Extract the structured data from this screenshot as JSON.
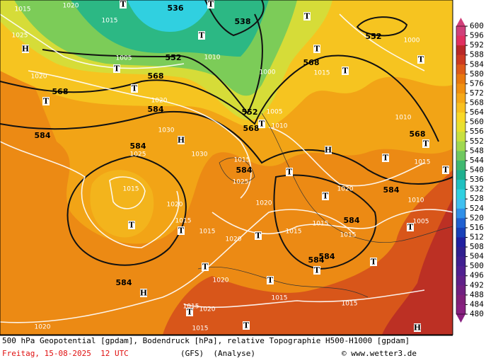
{
  "map": {
    "colorbar": {
      "levels": [
        600,
        596,
        592,
        588,
        584,
        580,
        576,
        572,
        568,
        564,
        560,
        556,
        552,
        548,
        544,
        540,
        536,
        532,
        528,
        524,
        520,
        516,
        512,
        508,
        504,
        500,
        496,
        492,
        488,
        484,
        480
      ],
      "colors": [
        "#d0407a",
        "#e03060",
        "#b82828",
        "#cc3a22",
        "#dd5a1a",
        "#e8780e",
        "#f09010",
        "#f5a818",
        "#f8c020",
        "#f8d828",
        "#e8e030",
        "#c8e040",
        "#a0d850",
        "#70c860",
        "#40b870",
        "#20b090",
        "#20c0c0",
        "#30d0e0",
        "#40c0f0",
        "#3090e8",
        "#2060d0",
        "#1840b8",
        "#2020a0",
        "#302090",
        "#402090",
        "#502090",
        "#602088",
        "#702080",
        "#802078",
        "#882080"
      ]
    },
    "geopotential_labels": [
      "584",
      "584",
      "584",
      "584",
      "584",
      "584",
      "584",
      "584",
      "584",
      "568",
      "568",
      "568",
      "568",
      "568",
      "552",
      "552",
      "552",
      "536",
      "538"
    ],
    "isobar_labels": [
      "1020",
      "1020",
      "1020",
      "1020",
      "1020",
      "1020",
      "1020",
      "1020",
      "1020",
      "1020",
      "1015",
      "1015",
      "1015",
      "1015",
      "1015",
      "1015",
      "1015",
      "1015",
      "1015",
      "1015",
      "1015",
      "1015",
      "1015",
      "1015",
      "1015",
      "1025",
      "1025",
      "1025",
      "1010",
      "1010",
      "1010",
      "1010",
      "1005",
      "1005",
      "1005",
      "1030",
      "1030",
      "1000",
      "1000"
    ],
    "pressure_centers": [
      "H",
      "H",
      "H",
      "H",
      "H",
      "T",
      "T",
      "T",
      "T",
      "T",
      "T",
      "T",
      "T",
      "T",
      "T",
      "T",
      "T",
      "T",
      "T",
      "T",
      "T",
      "T",
      "T",
      "T",
      "T",
      "T",
      "T",
      "T",
      "T",
      "T",
      "T"
    ],
    "footer": {
      "description": "500 hPa Geopotential [gpdam], Bodendruck [hPa], relative Topographie H500-H1000 [gpdam]",
      "date": "Freitag, 15-08-2025  12 UTC",
      "model": "(GFS)  (Analyse)",
      "copyright": "© www.wetter3.de"
    }
  }
}
